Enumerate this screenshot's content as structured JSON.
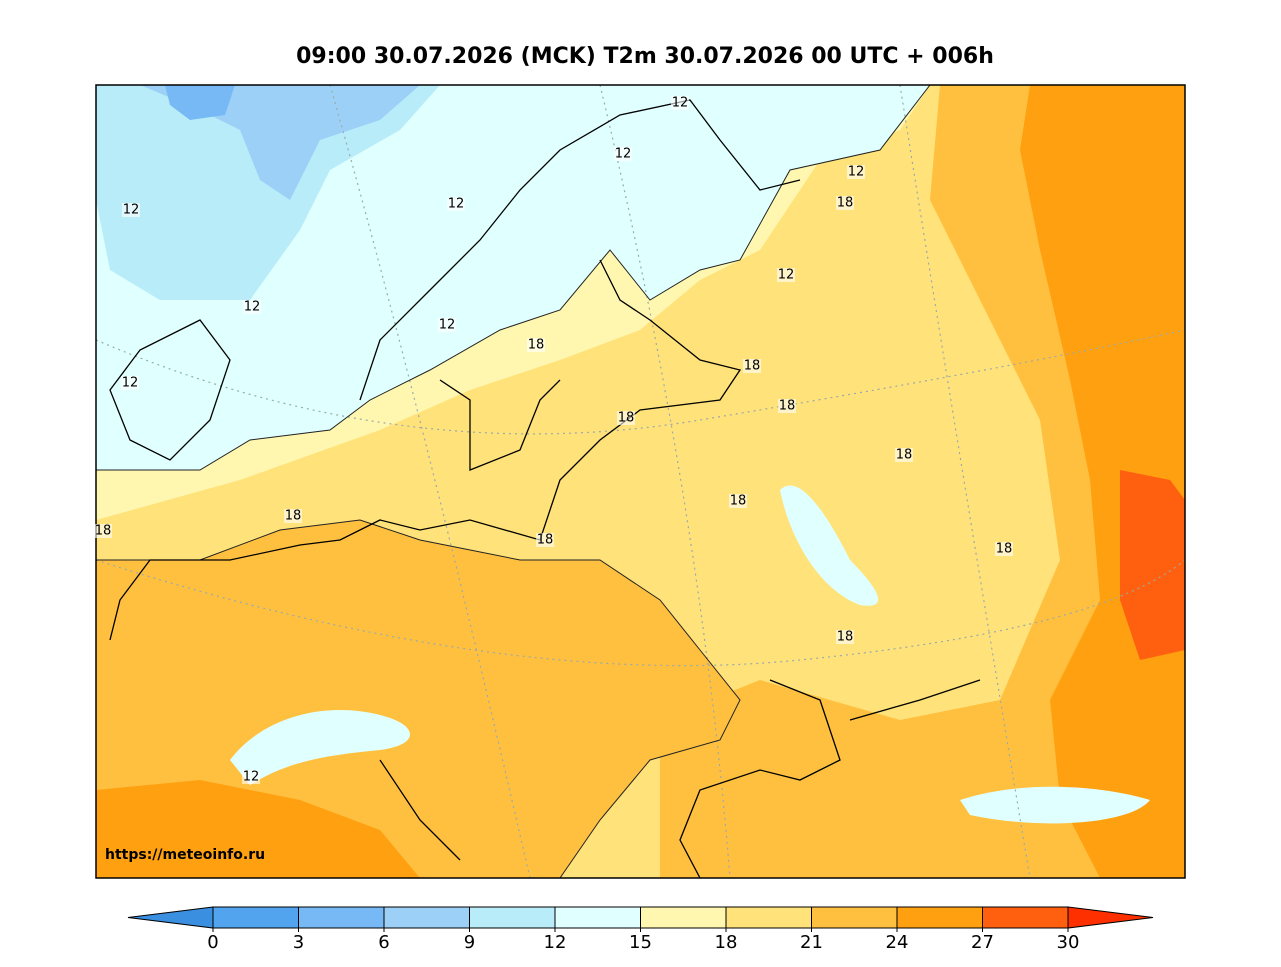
{
  "title": "09:00 30.07.2026 (MCK) T2m 30.07.2026 00 UTC + 006h",
  "watermark": "https://meteoinfo.ru",
  "contour_labels": [
    12,
    12,
    12,
    12,
    12,
    12,
    12,
    12,
    12,
    12,
    18,
    18,
    18,
    18,
    18,
    18,
    18,
    18,
    18,
    18,
    18,
    18
  ],
  "colorbar": {
    "ticks": [
      0,
      3,
      6,
      9,
      12,
      15,
      18,
      21,
      24,
      27,
      30
    ],
    "colors": [
      "#52a4ee",
      "#76b9f4",
      "#9dd0f7",
      "#b8ecf8",
      "#e0ffff",
      "#fff7b0",
      "#ffe27a",
      "#ffc040",
      "#ffa010",
      "#ff6010"
    ],
    "under_color": "#3a8fe0",
    "over_color": "#ff3000"
  }
}
